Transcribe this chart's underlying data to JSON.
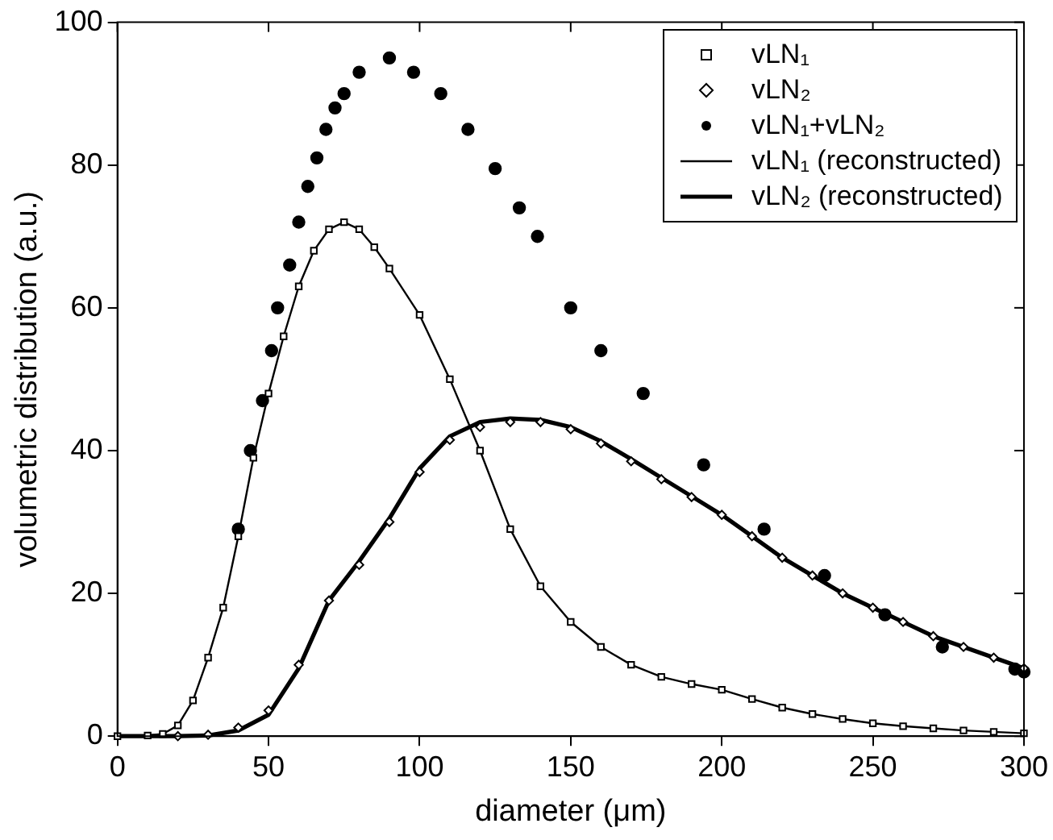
{
  "chart_data": {
    "type": "scatter",
    "xlabel": "diameter (μm)",
    "ylabel": "volumetric distribution (a.u.)",
    "xlim": [
      0,
      300
    ],
    "xticks": [
      0,
      50,
      100,
      150,
      200,
      250,
      300
    ],
    "ylim": [
      0,
      100
    ],
    "yticks": [
      0,
      20,
      40,
      60,
      80,
      100
    ],
    "grid": false,
    "legend": "top right",
    "series": [
      {
        "name": "vLN₁",
        "marker": "square",
        "color": "#000000",
        "x": [
          0,
          10,
          15,
          20,
          25,
          30,
          35,
          40,
          45,
          50,
          55,
          60,
          65,
          70,
          75,
          80,
          85,
          90,
          100,
          110,
          120,
          130,
          140,
          150,
          160,
          170,
          180,
          190,
          200,
          210,
          220,
          230,
          240,
          250,
          260,
          270,
          280,
          290,
          300
        ],
        "values": [
          0,
          0.1,
          0.3,
          1.5,
          5,
          11,
          18,
          28,
          39,
          48,
          56,
          63,
          68,
          71,
          72,
          71,
          68.5,
          65.5,
          59,
          50,
          40,
          29,
          21,
          16,
          12.5,
          10,
          8.3,
          7.3,
          6.5,
          5.2,
          4,
          3.1,
          2.4,
          1.8,
          1.4,
          1.1,
          0.8,
          0.6,
          0.4
        ]
      },
      {
        "name": "vLN₂",
        "marker": "diamond",
        "color": "#000000",
        "x": [
          20,
          30,
          40,
          50,
          60,
          70,
          80,
          90,
          100,
          110,
          120,
          130,
          140,
          150,
          160,
          170,
          180,
          190,
          200,
          210,
          220,
          230,
          240,
          250,
          260,
          270,
          280,
          290,
          300
        ],
        "values": [
          0,
          0.2,
          1.2,
          3.6,
          10,
          19,
          24,
          30,
          37,
          41.5,
          43.3,
          44,
          44,
          43,
          41,
          38.5,
          36,
          33.5,
          31,
          28,
          25,
          22.5,
          20,
          18,
          16,
          14,
          12.5,
          11,
          9.5
        ]
      },
      {
        "name": "vLN₁+vLN₂",
        "marker": "circle",
        "color": "#000000",
        "x": [
          40,
          44,
          48,
          51,
          53,
          57,
          60,
          63,
          66,
          69,
          72,
          75,
          80,
          90,
          98,
          107,
          116,
          125,
          133,
          139,
          150,
          160,
          174,
          194,
          214,
          234,
          254,
          273,
          297,
          300
        ],
        "values": [
          29,
          40,
          47,
          54,
          60,
          66,
          72,
          77,
          81,
          85,
          88,
          90,
          93,
          95,
          93,
          90,
          85,
          79.5,
          74,
          70,
          60,
          54,
          48,
          38,
          29,
          22.5,
          17,
          12.5,
          9.4,
          9
        ]
      },
      {
        "name": "vLN₁ (reconstructed)",
        "type": "line",
        "marker": "none",
        "line_style": "solid",
        "color": "#000000",
        "x": [
          0,
          10,
          15,
          20,
          25,
          30,
          35,
          40,
          45,
          50,
          55,
          60,
          65,
          70,
          75,
          80,
          85,
          90,
          100,
          110,
          120,
          130,
          140,
          150,
          160,
          170,
          180,
          190,
          200,
          210,
          220,
          230,
          240,
          250,
          260,
          270,
          280,
          290,
          300
        ],
        "values": [
          0,
          0.1,
          0.3,
          1.5,
          5,
          11,
          18,
          28,
          39,
          48,
          56,
          63,
          68,
          71,
          72,
          71,
          68.5,
          65.5,
          59,
          50,
          40,
          29,
          21,
          16,
          12.5,
          10,
          8.3,
          7.3,
          6.5,
          5.2,
          4,
          3.1,
          2.4,
          1.8,
          1.4,
          1.1,
          0.8,
          0.6,
          0.4
        ]
      },
      {
        "name": "vLN₂ (reconstructed)",
        "type": "line",
        "marker": "none",
        "line_style": "solid",
        "color": "#000000",
        "x": [
          0,
          10,
          20,
          30,
          40,
          50,
          60,
          70,
          80,
          90,
          100,
          110,
          120,
          130,
          140,
          150,
          160,
          170,
          180,
          190,
          200,
          210,
          220,
          230,
          240,
          250,
          260,
          270,
          280,
          290,
          300
        ],
        "values": [
          0,
          0,
          0,
          0.1,
          0.8,
          3,
          9.5,
          19,
          24.5,
          30.5,
          37.5,
          42,
          44,
          44.5,
          44.3,
          43.3,
          41.3,
          38.8,
          36.2,
          33.6,
          31,
          28,
          25,
          22.5,
          20,
          18,
          16,
          14,
          12.5,
          11,
          9.5
        ]
      }
    ]
  }
}
